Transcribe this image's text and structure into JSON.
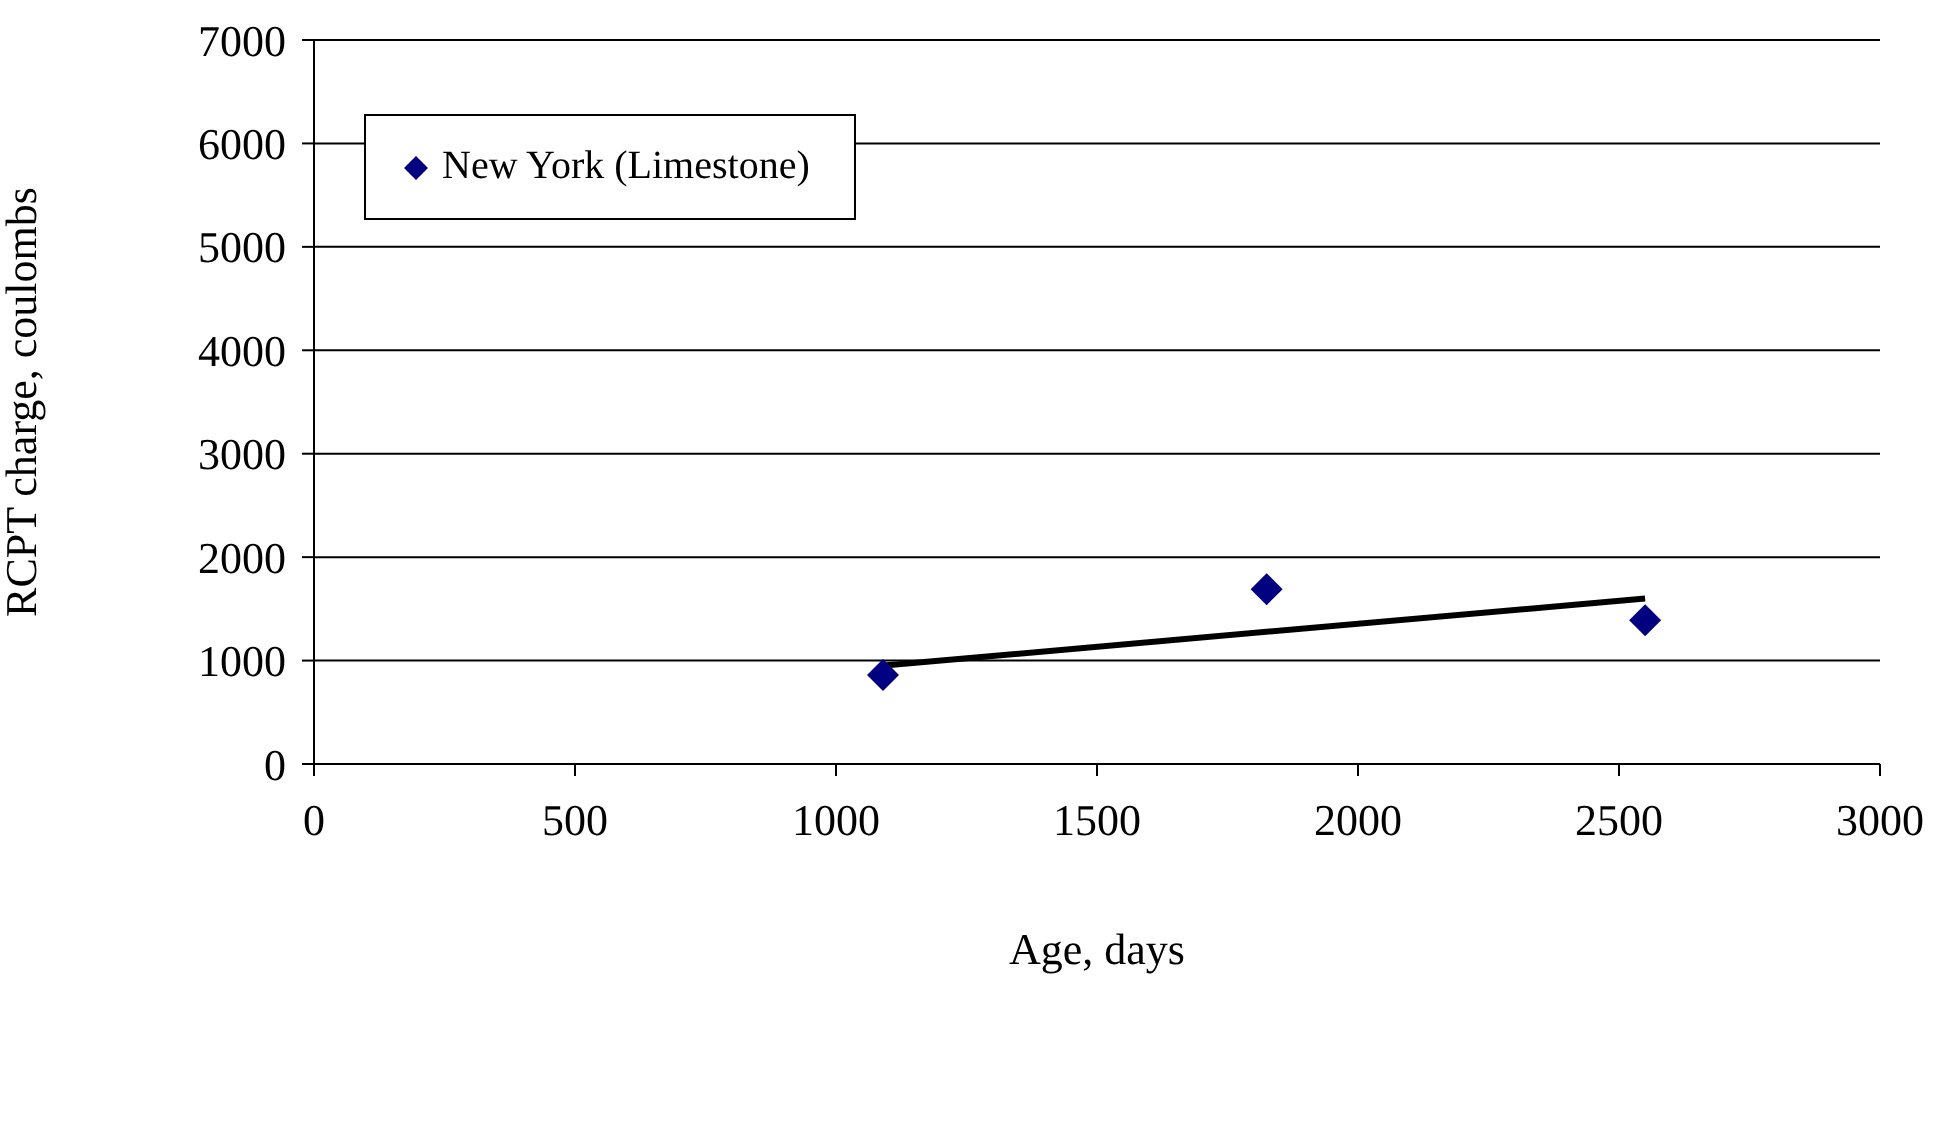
{
  "chart_data": {
    "type": "scatter",
    "xlabel": "Age, days",
    "ylabel": "RCPT charge, coulombs",
    "series": [
      {
        "name": "New York (Limestone)",
        "marker": "diamond",
        "color": "#000080",
        "x": [
          1090,
          1825,
          2550
        ],
        "values": [
          860,
          1690,
          1390
        ]
      },
      {
        "type": "line",
        "marker": "none",
        "color": "#000000",
        "x": [
          1087,
          2550
        ],
        "values": [
          950,
          1600
        ]
      }
    ],
    "xlim": [
      0,
      3000
    ],
    "xticks": [
      0,
      500,
      1000,
      1500,
      2000,
      2500,
      3000
    ],
    "ylim": [
      0,
      7000
    ],
    "yticks": [
      0,
      1000,
      2000,
      3000,
      4000,
      5000,
      6000,
      7000
    ],
    "grid": "y",
    "legend": "top left",
    "line_style": "solid"
  }
}
